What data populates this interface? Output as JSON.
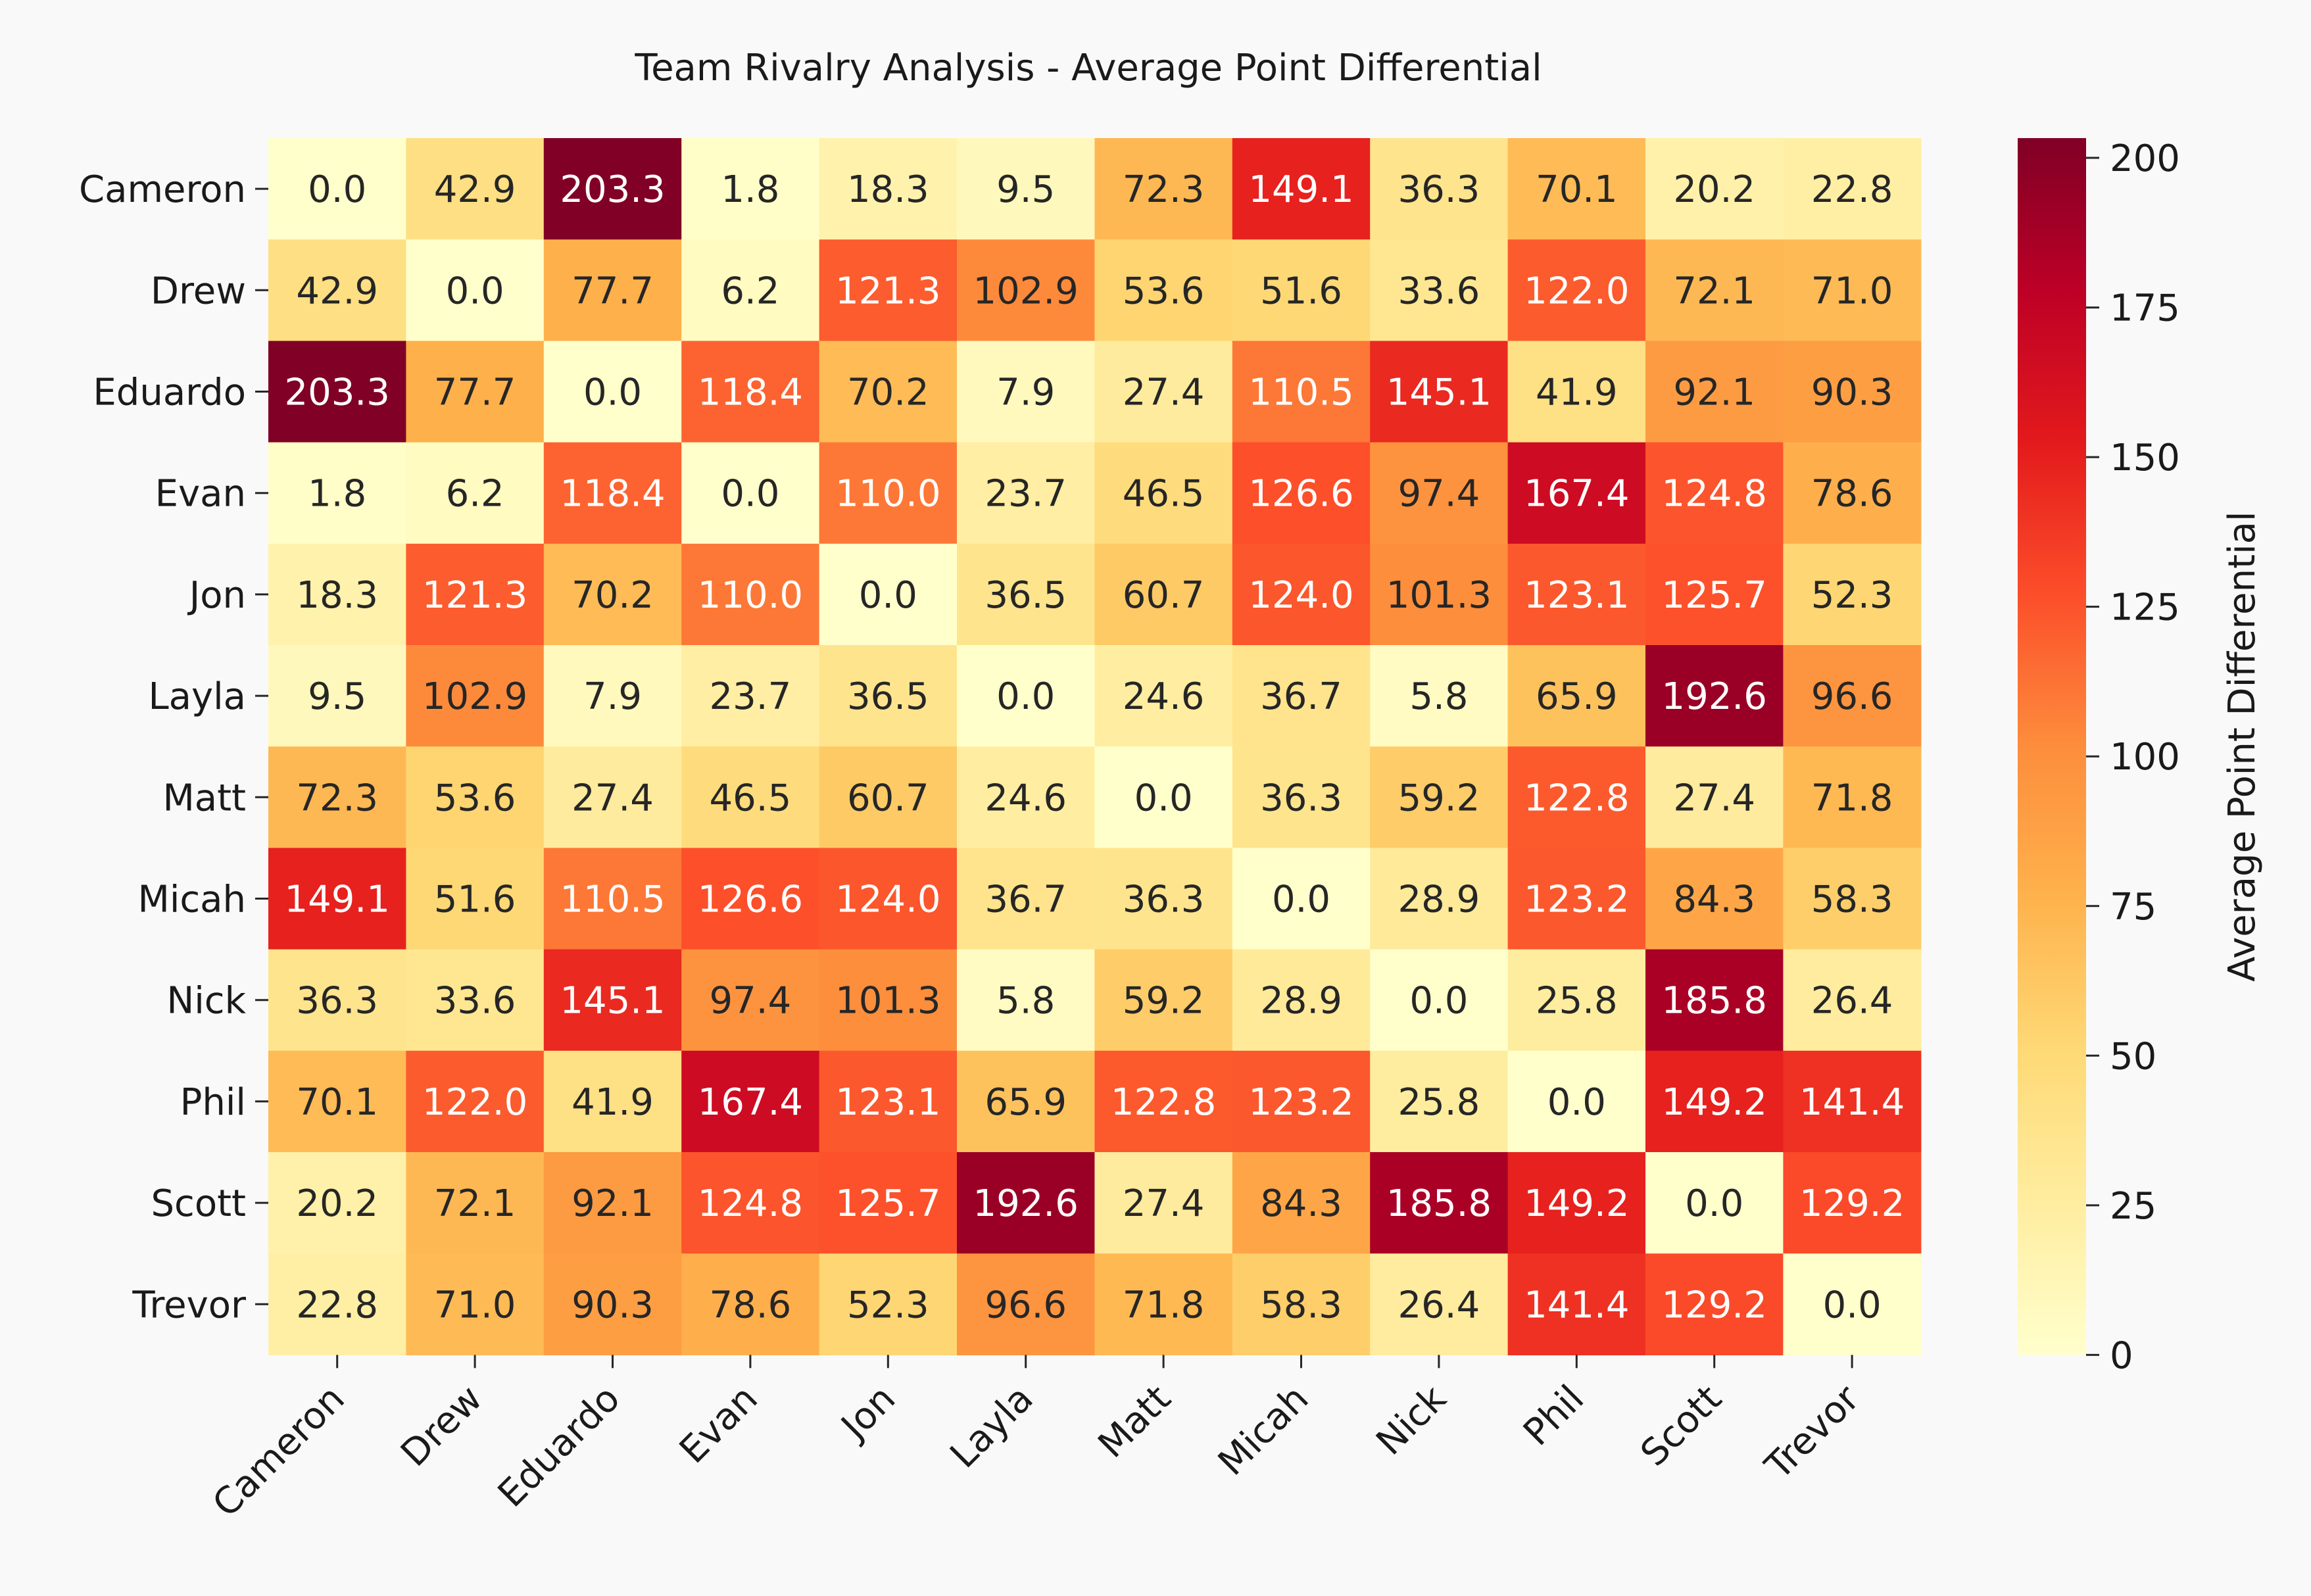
{
  "chart_data": {
    "type": "heatmap",
    "title": "Team Rivalry Analysis - Average Point Differential",
    "rows": [
      "Cameron",
      "Drew",
      "Eduardo",
      "Evan",
      "Jon",
      "Layla",
      "Matt",
      "Micah",
      "Nick",
      "Phil",
      "Scott",
      "Trevor"
    ],
    "columns": [
      "Cameron",
      "Drew",
      "Eduardo",
      "Evan",
      "Jon",
      "Layla",
      "Matt",
      "Micah",
      "Nick",
      "Phil",
      "Scott",
      "Trevor"
    ],
    "values": [
      [
        0.0,
        42.9,
        203.3,
        1.8,
        18.3,
        9.5,
        72.3,
        149.1,
        36.3,
        70.1,
        20.2,
        22.8
      ],
      [
        42.9,
        0.0,
        77.7,
        6.2,
        121.3,
        102.9,
        53.6,
        51.6,
        33.6,
        122.0,
        72.1,
        71.0
      ],
      [
        203.3,
        77.7,
        0.0,
        118.4,
        70.2,
        7.9,
        27.4,
        110.5,
        145.1,
        41.9,
        92.1,
        90.3
      ],
      [
        1.8,
        6.2,
        118.4,
        0.0,
        110.0,
        23.7,
        46.5,
        126.6,
        97.4,
        167.4,
        124.8,
        78.6
      ],
      [
        18.3,
        121.3,
        70.2,
        110.0,
        0.0,
        36.5,
        60.7,
        124.0,
        101.3,
        123.1,
        125.7,
        52.3
      ],
      [
        9.5,
        102.9,
        7.9,
        23.7,
        36.5,
        0.0,
        24.6,
        36.7,
        5.8,
        65.9,
        192.6,
        96.6
      ],
      [
        72.3,
        53.6,
        27.4,
        46.5,
        60.7,
        24.6,
        0.0,
        36.3,
        59.2,
        122.8,
        27.4,
        71.8
      ],
      [
        149.1,
        51.6,
        110.5,
        126.6,
        124.0,
        36.7,
        36.3,
        0.0,
        28.9,
        123.2,
        84.3,
        58.3
      ],
      [
        36.3,
        33.6,
        145.1,
        97.4,
        101.3,
        5.8,
        59.2,
        28.9,
        0.0,
        25.8,
        185.8,
        26.4
      ],
      [
        70.1,
        122.0,
        41.9,
        167.4,
        123.1,
        65.9,
        122.8,
        123.2,
        25.8,
        0.0,
        149.2,
        141.4
      ],
      [
        20.2,
        72.1,
        92.1,
        124.8,
        125.7,
        192.6,
        27.4,
        84.3,
        185.8,
        149.2,
        0.0,
        129.2
      ],
      [
        22.8,
        71.0,
        90.3,
        78.6,
        52.3,
        96.6,
        71.8,
        58.3,
        26.4,
        141.4,
        129.2,
        0.0
      ]
    ],
    "value_format": "0.0",
    "colormap": "YlOrRd",
    "vmin": 0,
    "vmax": 203.3,
    "colorbar": {
      "label": "Average Point Differential",
      "ticks": [
        0,
        25,
        50,
        75,
        100,
        125,
        150,
        175,
        200
      ]
    },
    "xlabel": "",
    "ylabel": "",
    "colors": {
      "background": "#f9f9f9",
      "text_dark": "#262626",
      "text_light": "#ffffff",
      "ramp": [
        "#ffffcc",
        "#ffeda0",
        "#fed976",
        "#feb24c",
        "#fd8d3c",
        "#fc4e2a",
        "#e31a1c",
        "#bd0026",
        "#800026"
      ]
    }
  }
}
